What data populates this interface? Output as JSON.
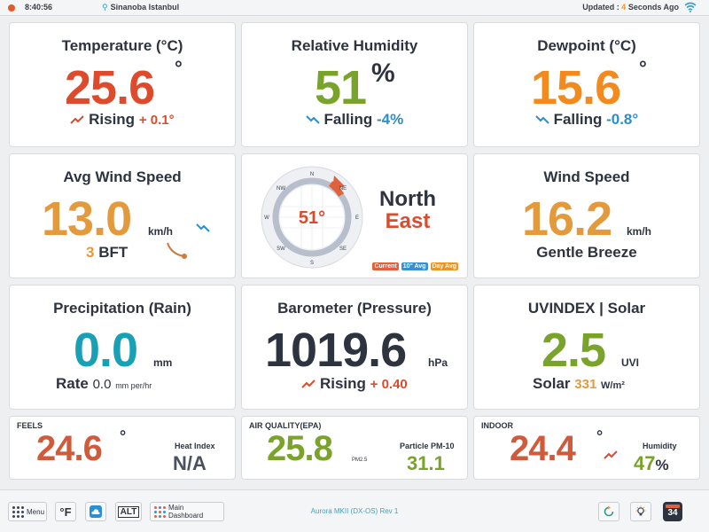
{
  "topbar": {
    "time": "8:40:56",
    "location": "Sinanoba Istanbul",
    "updated_prefix": "Updated :",
    "updated_value": "4",
    "updated_suffix": "Seconds Ago"
  },
  "temperature": {
    "title": "Temperature (°C)",
    "value": "25.6",
    "unit": "°",
    "trend_label": "Rising",
    "trend_value": "+ 0.1°"
  },
  "humidity": {
    "title": "Relative Humidity",
    "value": "51",
    "unit": "%",
    "trend_label": "Falling",
    "trend_value": "-4%"
  },
  "dewpoint": {
    "title": "Dewpoint (°C)",
    "value": "15.6",
    "unit": "°",
    "trend_label": "Falling",
    "trend_value": "-0.8°"
  },
  "avg_wind": {
    "title": "Avg Wind Speed",
    "value": "13.0",
    "unit": "km/h",
    "bft_value": "3",
    "bft_label": "BFT"
  },
  "compass": {
    "degrees": "51°",
    "dir_line1": "North",
    "dir_line2": "East",
    "cardinals": [
      "N",
      "NE",
      "E",
      "SE",
      "S",
      "SW",
      "W",
      "NW"
    ],
    "legend": [
      {
        "label": "Current",
        "color": "#e0613b"
      },
      {
        "label": "10\" Avg",
        "color": "#3a8fd0"
      },
      {
        "label": "Day Avg",
        "color": "#e8962b"
      }
    ]
  },
  "wind_speed": {
    "title": "Wind Speed",
    "value": "16.2",
    "unit": "km/h",
    "description": "Gentle Breeze"
  },
  "rain": {
    "title": "Precipitation (Rain)",
    "value": "0.0",
    "unit": "mm",
    "rate_label": "Rate",
    "rate_value": "0.0",
    "rate_unit": "mm per/hr"
  },
  "pressure": {
    "title": "Barometer (Pressure)",
    "value": "1019.6",
    "unit": "hPa",
    "trend_label": "Rising",
    "trend_value": "+ 0.40"
  },
  "uv": {
    "title": "UVINDEX | Solar",
    "value": "2.5",
    "unit": "UVI",
    "solar_label": "Solar",
    "solar_value": "331",
    "solar_unit": "W/m²"
  },
  "feels": {
    "title": "FEELS",
    "value": "24.6",
    "unit": "°",
    "index_label": "Heat Index",
    "index_value": "N/A"
  },
  "air": {
    "title": "AIR QUALITY(EPA)",
    "value": "25.8",
    "unit": "PM2.5",
    "pm10_label": "Particle PM-10",
    "pm10_value": "31.1"
  },
  "indoor": {
    "title": "INDOOR",
    "value": "24.4",
    "unit": "°",
    "humidity_label": "Humidity",
    "humidity_value": "47",
    "humidity_unit": "%"
  },
  "bottombar": {
    "menu": "Menu",
    "unit_toggle": "°F",
    "alt": "ALT",
    "main_dashboard": "Main Dashboard",
    "version": "Aurora MKII (DX-OS) Rev 1",
    "calendar_day": "34"
  }
}
